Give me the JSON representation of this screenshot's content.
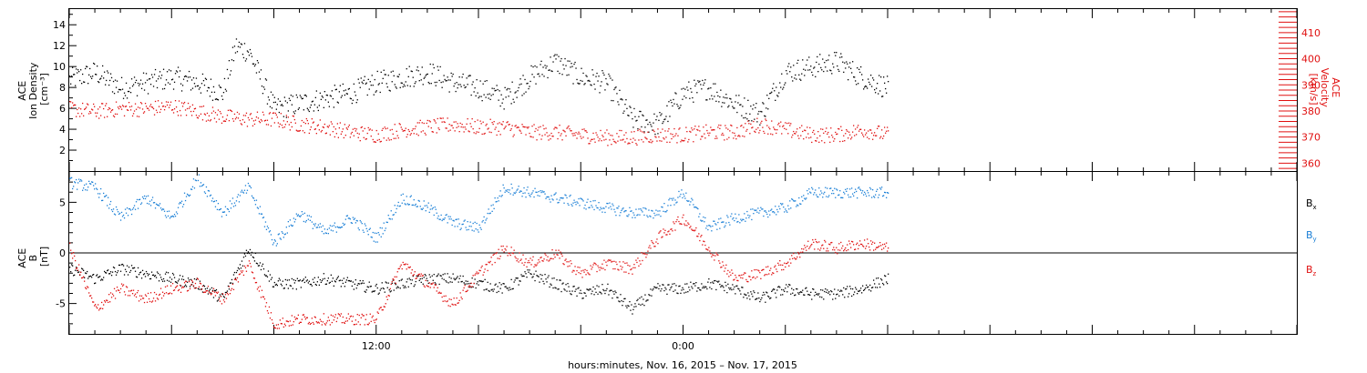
{
  "colors": {
    "black": "#000000",
    "red": "#e01010",
    "blue": "#1a7fd6"
  },
  "chart_data": [
    {
      "type": "scatter",
      "panel": "top",
      "ylabel_left_lines": [
        "ACE",
        "Ion Density",
        "[cm⁻³]"
      ],
      "ylabel_right_lines": [
        "ACE",
        "Velocity",
        "[km/s]"
      ],
      "ylim_left": [
        0,
        15.5
      ],
      "ylim_right": [
        357,
        419
      ],
      "left_ticks": [
        2,
        4,
        6,
        8,
        10,
        12,
        14
      ],
      "right_ticks": [
        360,
        370,
        380,
        390,
        400,
        410
      ],
      "series": [
        {
          "axis": "left",
          "color": "#000000",
          "anchors_hours": [
            0,
            1,
            2,
            3,
            4,
            5,
            6,
            6.5,
            7,
            8,
            9,
            10,
            11,
            12,
            13,
            14,
            15,
            16,
            17,
            18,
            19,
            20,
            21,
            22,
            23,
            24,
            25,
            26,
            27,
            28,
            29,
            30,
            31,
            32
          ],
          "anchors_values": [
            8.8,
            9.5,
            8.0,
            8.5,
            9.0,
            8.5,
            7.5,
            12.0,
            11.5,
            6.0,
            6.5,
            7.0,
            7.5,
            8.5,
            9.0,
            9.5,
            8.5,
            8.0,
            7.0,
            9.0,
            10.5,
            9.0,
            8.5,
            5.0,
            4.5,
            7.5,
            8.0,
            6.5,
            5.5,
            9.5,
            10.0,
            10.5,
            9.0,
            8.0
          ]
        },
        {
          "axis": "right",
          "color": "#e01010",
          "anchors_hours": [
            0,
            1,
            2,
            3,
            4,
            5,
            6,
            7,
            8,
            9,
            10,
            11,
            12,
            13,
            14,
            15,
            16,
            17,
            18,
            19,
            20,
            21,
            22,
            23,
            24,
            25,
            26,
            27,
            28,
            29,
            30,
            31,
            32
          ],
          "anchors_values": [
            381,
            380,
            381,
            381,
            382,
            380,
            378,
            377,
            377,
            375,
            374,
            372,
            371,
            373,
            374,
            375,
            374,
            374,
            372,
            372,
            371,
            370,
            370,
            371,
            371,
            372,
            372,
            375,
            373,
            371,
            371,
            373,
            371
          ]
        }
      ]
    },
    {
      "type": "scatter",
      "panel": "bottom",
      "ylabel_lines": [
        "ACE",
        "B",
        "[nT]"
      ],
      "ylim": [
        -8,
        8
      ],
      "ticks": [
        -5,
        0,
        5
      ],
      "zero_line": true,
      "legend": [
        {
          "label": "B",
          "sub": "x",
          "color": "#000000"
        },
        {
          "label": "B",
          "sub": "y",
          "color": "#1a7fd6"
        },
        {
          "label": "B",
          "sub": "z",
          "color": "#e01010"
        }
      ],
      "series": [
        {
          "name": "Bx",
          "color": "#000000",
          "anchors_hours": [
            0,
            1,
            2,
            3,
            4,
            5,
            6,
            7,
            8,
            9,
            10,
            11,
            12,
            13,
            14,
            15,
            16,
            17,
            18,
            19,
            20,
            21,
            22,
            23,
            24,
            25,
            26,
            27,
            28,
            29,
            30,
            31,
            32
          ],
          "anchors_values": [
            -1.5,
            -2.5,
            -1.5,
            -2.0,
            -2.5,
            -3.0,
            -4.5,
            0.5,
            -3.0,
            -3.0,
            -2.5,
            -3.0,
            -3.5,
            -3.0,
            -2.5,
            -2.5,
            -3.0,
            -3.5,
            -2.0,
            -3.0,
            -4.0,
            -3.5,
            -5.5,
            -3.5,
            -3.5,
            -3.0,
            -3.5,
            -4.5,
            -3.5,
            -4.0,
            -4.0,
            -3.5,
            -2.5
          ]
        },
        {
          "name": "By",
          "color": "#1a7fd6",
          "anchors_hours": [
            0,
            1,
            2,
            3,
            4,
            5,
            6,
            7,
            8,
            9,
            10,
            11,
            12,
            13,
            14,
            15,
            16,
            17,
            18,
            19,
            20,
            21,
            22,
            23,
            24,
            25,
            26,
            27,
            28,
            29,
            30,
            31,
            32
          ],
          "anchors_values": [
            7.0,
            6.5,
            3.5,
            5.5,
            3.5,
            7.5,
            4.0,
            6.5,
            1.0,
            4.0,
            2.0,
            3.5,
            1.5,
            5.5,
            4.5,
            3.0,
            2.5,
            6.5,
            6.0,
            5.5,
            5.0,
            4.5,
            4.0,
            4.0,
            6.0,
            2.5,
            3.5,
            4.0,
            4.5,
            6.0,
            6.0,
            6.0,
            6.0
          ]
        },
        {
          "name": "Bz",
          "color": "#e01010",
          "anchors_hours": [
            0,
            1,
            2,
            3,
            4,
            5,
            6,
            7,
            8,
            9,
            10,
            11,
            12,
            13,
            14,
            15,
            16,
            17,
            18,
            19,
            20,
            21,
            22,
            23,
            24,
            25,
            26,
            27,
            28,
            29,
            30,
            31,
            32
          ],
          "anchors_values": [
            0.5,
            -5.5,
            -3.5,
            -4.5,
            -3.5,
            -3.0,
            -4.5,
            -1.0,
            -7.0,
            -6.5,
            -6.5,
            -6.5,
            -6.5,
            -1.0,
            -3.0,
            -5.0,
            -2.0,
            0.5,
            -1.0,
            0.0,
            -2.0,
            -1.0,
            -1.5,
            1.5,
            3.5,
            0.5,
            -2.5,
            -2.0,
            -1.0,
            1.0,
            0.5,
            1.0,
            0.5
          ]
        }
      ]
    }
  ],
  "x_axis": {
    "ticks": [
      {
        "hour": 12,
        "label": "12:00"
      },
      {
        "hour": 24,
        "label": "0:00"
      }
    ],
    "minor_every_hours": 4,
    "xlim_hours": [
      0,
      48
    ],
    "xlabel": "hours:minutes, Nov. 16, 2015 – Nov. 17, 2015"
  }
}
